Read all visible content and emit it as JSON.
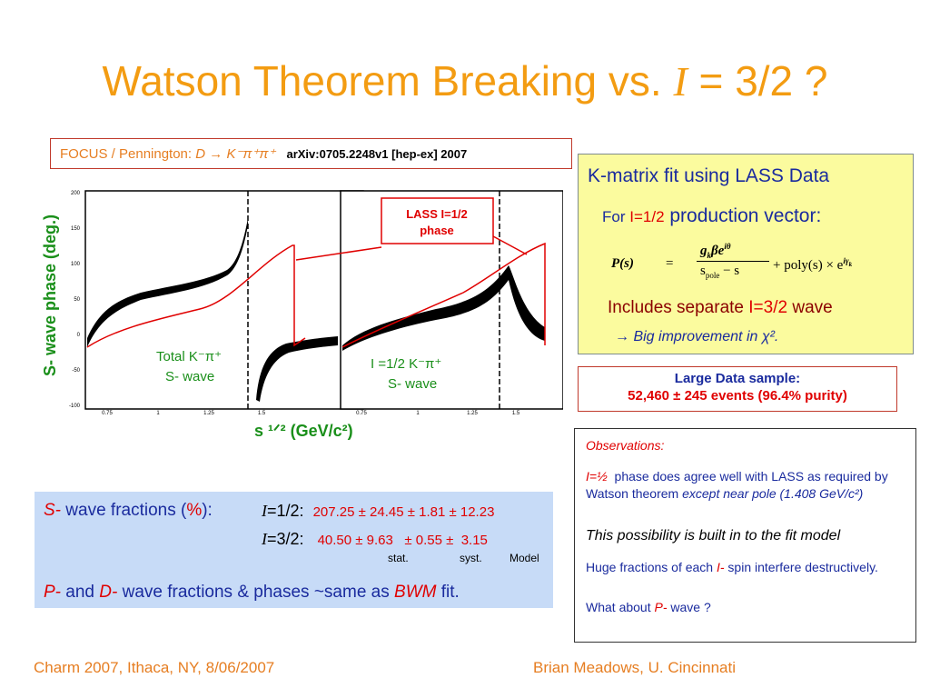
{
  "title": {
    "prefix": "Watson Theorem Breaking vs. ",
    "var": "I",
    "suffix": " = 3/2 ?"
  },
  "focus": {
    "label": "FOCUS / Pennington: ",
    "d": "D",
    "arrow": " → ",
    "decay": "K⁻π⁺π⁺",
    "ref": "arXiv:0705.2248v1 [hep-ex] 2007"
  },
  "plots": {
    "y_axis_label": "S- wave phase (deg.)",
    "x_axis_label": "s ¹ᐟ² (GeV/c²)",
    "left_xticks": [
      "0.75",
      "1",
      "1.25",
      "1.5"
    ],
    "left_yticks": [
      "200",
      "150",
      "100",
      "50",
      "0",
      "-50",
      "-100"
    ],
    "right_xticks": [
      "0.75",
      "1",
      "1.25",
      "1.5"
    ],
    "left_label_line1": "Total K⁻π⁺",
    "left_label_line2": "S- wave",
    "right_label_line1": "I =1/2  K⁻π⁺",
    "right_label_line2": "S- wave",
    "lass_line1": "LASS I=1/2",
    "lass_line2": "phase",
    "colors": {
      "data": "#000000",
      "fit": "#e00000",
      "axis_label": "#1a8f1a"
    }
  },
  "kmatrix": {
    "heading": "K-matrix fit using LASS Data",
    "for_text": "For ",
    "for_iso": "I=1/2",
    "for_rest": " production vector:",
    "eq_lhs": "P(s)",
    "eq_eq": "=",
    "eq_num": "g",
    "eq_num_sub": "k",
    "eq_num_rest": "βe",
    "eq_num_sup": "iθ",
    "eq_den": "s",
    "eq_den_sub": "pole",
    "eq_den_rest": " − s",
    "eq_tail": "+ poly(s) × e",
    "eq_tail_sup": "iγ",
    "eq_tail_sup_sub": "k",
    "includes": "Includes separate ",
    "includes_iso": "I=3/2",
    "includes_rest": " wave",
    "improve": "→ Big improvement in χ².",
    "colors": {
      "bg": "#fbfb9e",
      "heading": "#1a2b9e",
      "accent": "#e00000",
      "wave": "#8b0000"
    }
  },
  "large_sample": {
    "line1": "Large Data sample:",
    "line2": "52,460 ± 245 events (96.4% purity)"
  },
  "observations": {
    "heading": "Observations:",
    "item1_iso": "I=½",
    "item1_text": "phase does agree well with LASS as required by Watson theorem",
    "item1_italic": " except near pole (1.408 GeV/c²)",
    "item2": "This possibility is built in to the fit model",
    "item3_a": "Huge fractions of each ",
    "item3_iso": "I-",
    "item3_b": " spin interfere destructively.",
    "item4_a": "What about ",
    "item4_p": "P-",
    "item4_b": " wave ?"
  },
  "wave_fractions": {
    "label_s": "S-",
    "label_rest": " wave fractions (",
    "label_pct": "%",
    "label_end": "):",
    "row1_iso": "I",
    "row1_val": "=1/2:",
    "row1_nums": "207.25 ± 24.45 ± 1.81 ± 12.23",
    "row2_iso": "I",
    "row2_val": "=3/2:",
    "row2_nums": "40.50 ± 9.63   ± 0.55 ±  3.15",
    "col_stat": "stat.",
    "col_syst": "syst.",
    "col_model": "Model",
    "pd_p": "P-",
    "pd_and": " and ",
    "pd_d": "D-",
    "pd_rest": " wave fractions & phases ~same as ",
    "pd_bwm": "BWM",
    "pd_end": " fit."
  },
  "footer": {
    "left": "Charm 2007, Ithaca, NY, 8/06/2007",
    "right": "Brian Meadows, U. Cincinnati",
    "color": "#e67e22"
  }
}
